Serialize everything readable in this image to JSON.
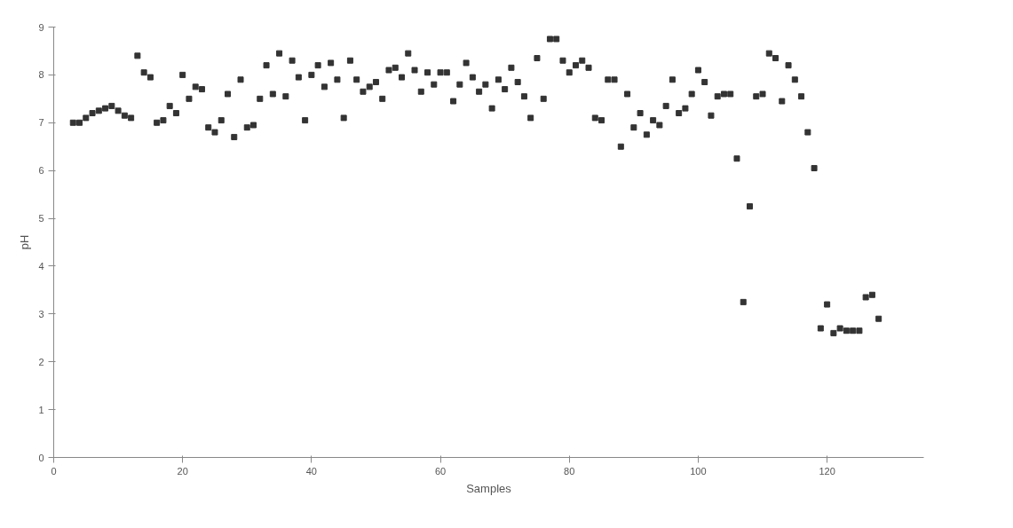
{
  "chart_data": {
    "type": "scatter",
    "xlabel": "Samples",
    "ylabel": "pH",
    "marker": "square",
    "grid": false,
    "xlim": [
      0,
      135
    ],
    "xticks": [
      0,
      20,
      40,
      60,
      80,
      100,
      120
    ],
    "ylim": [
      0,
      9
    ],
    "yticks": [
      0,
      1,
      2,
      3,
      4,
      5,
      6,
      7,
      8,
      9
    ],
    "series": [
      {
        "color": "#333333",
        "x": [
          3,
          4,
          5,
          6,
          7,
          8,
          9,
          10,
          11,
          12,
          13,
          14,
          15,
          16,
          17,
          18,
          19,
          20,
          21,
          22,
          23,
          24,
          25,
          26,
          27,
          28,
          29,
          30,
          31,
          32,
          33,
          34,
          35,
          36,
          37,
          38,
          39,
          40,
          41,
          42,
          43,
          44,
          45,
          46,
          47,
          48,
          49,
          50,
          51,
          52,
          53,
          54,
          55,
          56,
          57,
          58,
          59,
          60,
          61,
          62,
          63,
          64,
          65,
          66,
          67,
          68,
          69,
          70,
          71,
          72,
          73,
          74,
          75,
          76,
          77,
          78,
          79,
          80,
          81,
          82,
          83,
          84,
          85,
          86,
          87,
          88,
          89,
          90,
          91,
          92,
          93,
          94,
          95,
          96,
          97,
          98,
          99,
          100,
          101,
          102,
          103,
          104,
          105,
          106,
          107,
          108,
          109,
          110,
          111,
          112,
          113,
          114,
          115,
          116,
          117,
          118,
          119,
          120,
          121,
          122,
          123,
          124,
          125,
          126,
          127,
          128
        ],
        "values": [
          7.0,
          7.0,
          7.1,
          7.2,
          7.25,
          7.3,
          7.35,
          7.25,
          7.15,
          7.1,
          8.4,
          8.05,
          7.95,
          7.0,
          7.05,
          7.35,
          7.2,
          8.0,
          7.5,
          7.75,
          7.7,
          6.9,
          6.8,
          7.05,
          7.6,
          6.7,
          7.9,
          6.9,
          6.95,
          7.5,
          8.2,
          7.6,
          8.45,
          7.55,
          8.3,
          7.95,
          7.05,
          8.0,
          8.2,
          7.75,
          8.25,
          7.9,
          7.1,
          8.3,
          7.9,
          7.65,
          7.75,
          7.85,
          7.5,
          8.1,
          8.15,
          7.95,
          8.45,
          8.1,
          7.65,
          8.05,
          7.8,
          8.05,
          8.05,
          7.45,
          7.8,
          8.25,
          7.95,
          7.65,
          7.8,
          7.3,
          7.9,
          7.7,
          8.15,
          7.85,
          7.55,
          7.1,
          8.35,
          7.5,
          8.75,
          8.75,
          8.3,
          8.05,
          8.2,
          8.3,
          8.15,
          7.1,
          7.05,
          7.9,
          7.9,
          6.5,
          7.6,
          6.9,
          7.2,
          6.75,
          7.05,
          6.95,
          7.35,
          7.9,
          7.2,
          7.3,
          7.6,
          8.1,
          7.85,
          7.15,
          7.55,
          7.6,
          7.6,
          6.25,
          3.25,
          5.25,
          7.55,
          7.6,
          8.45,
          8.35,
          7.45,
          8.2,
          7.9,
          7.55,
          6.8,
          6.05,
          2.7,
          3.2,
          2.6,
          2.7,
          2.65,
          2.65,
          2.65,
          3.35,
          3.4,
          2.9
        ]
      }
    ]
  }
}
